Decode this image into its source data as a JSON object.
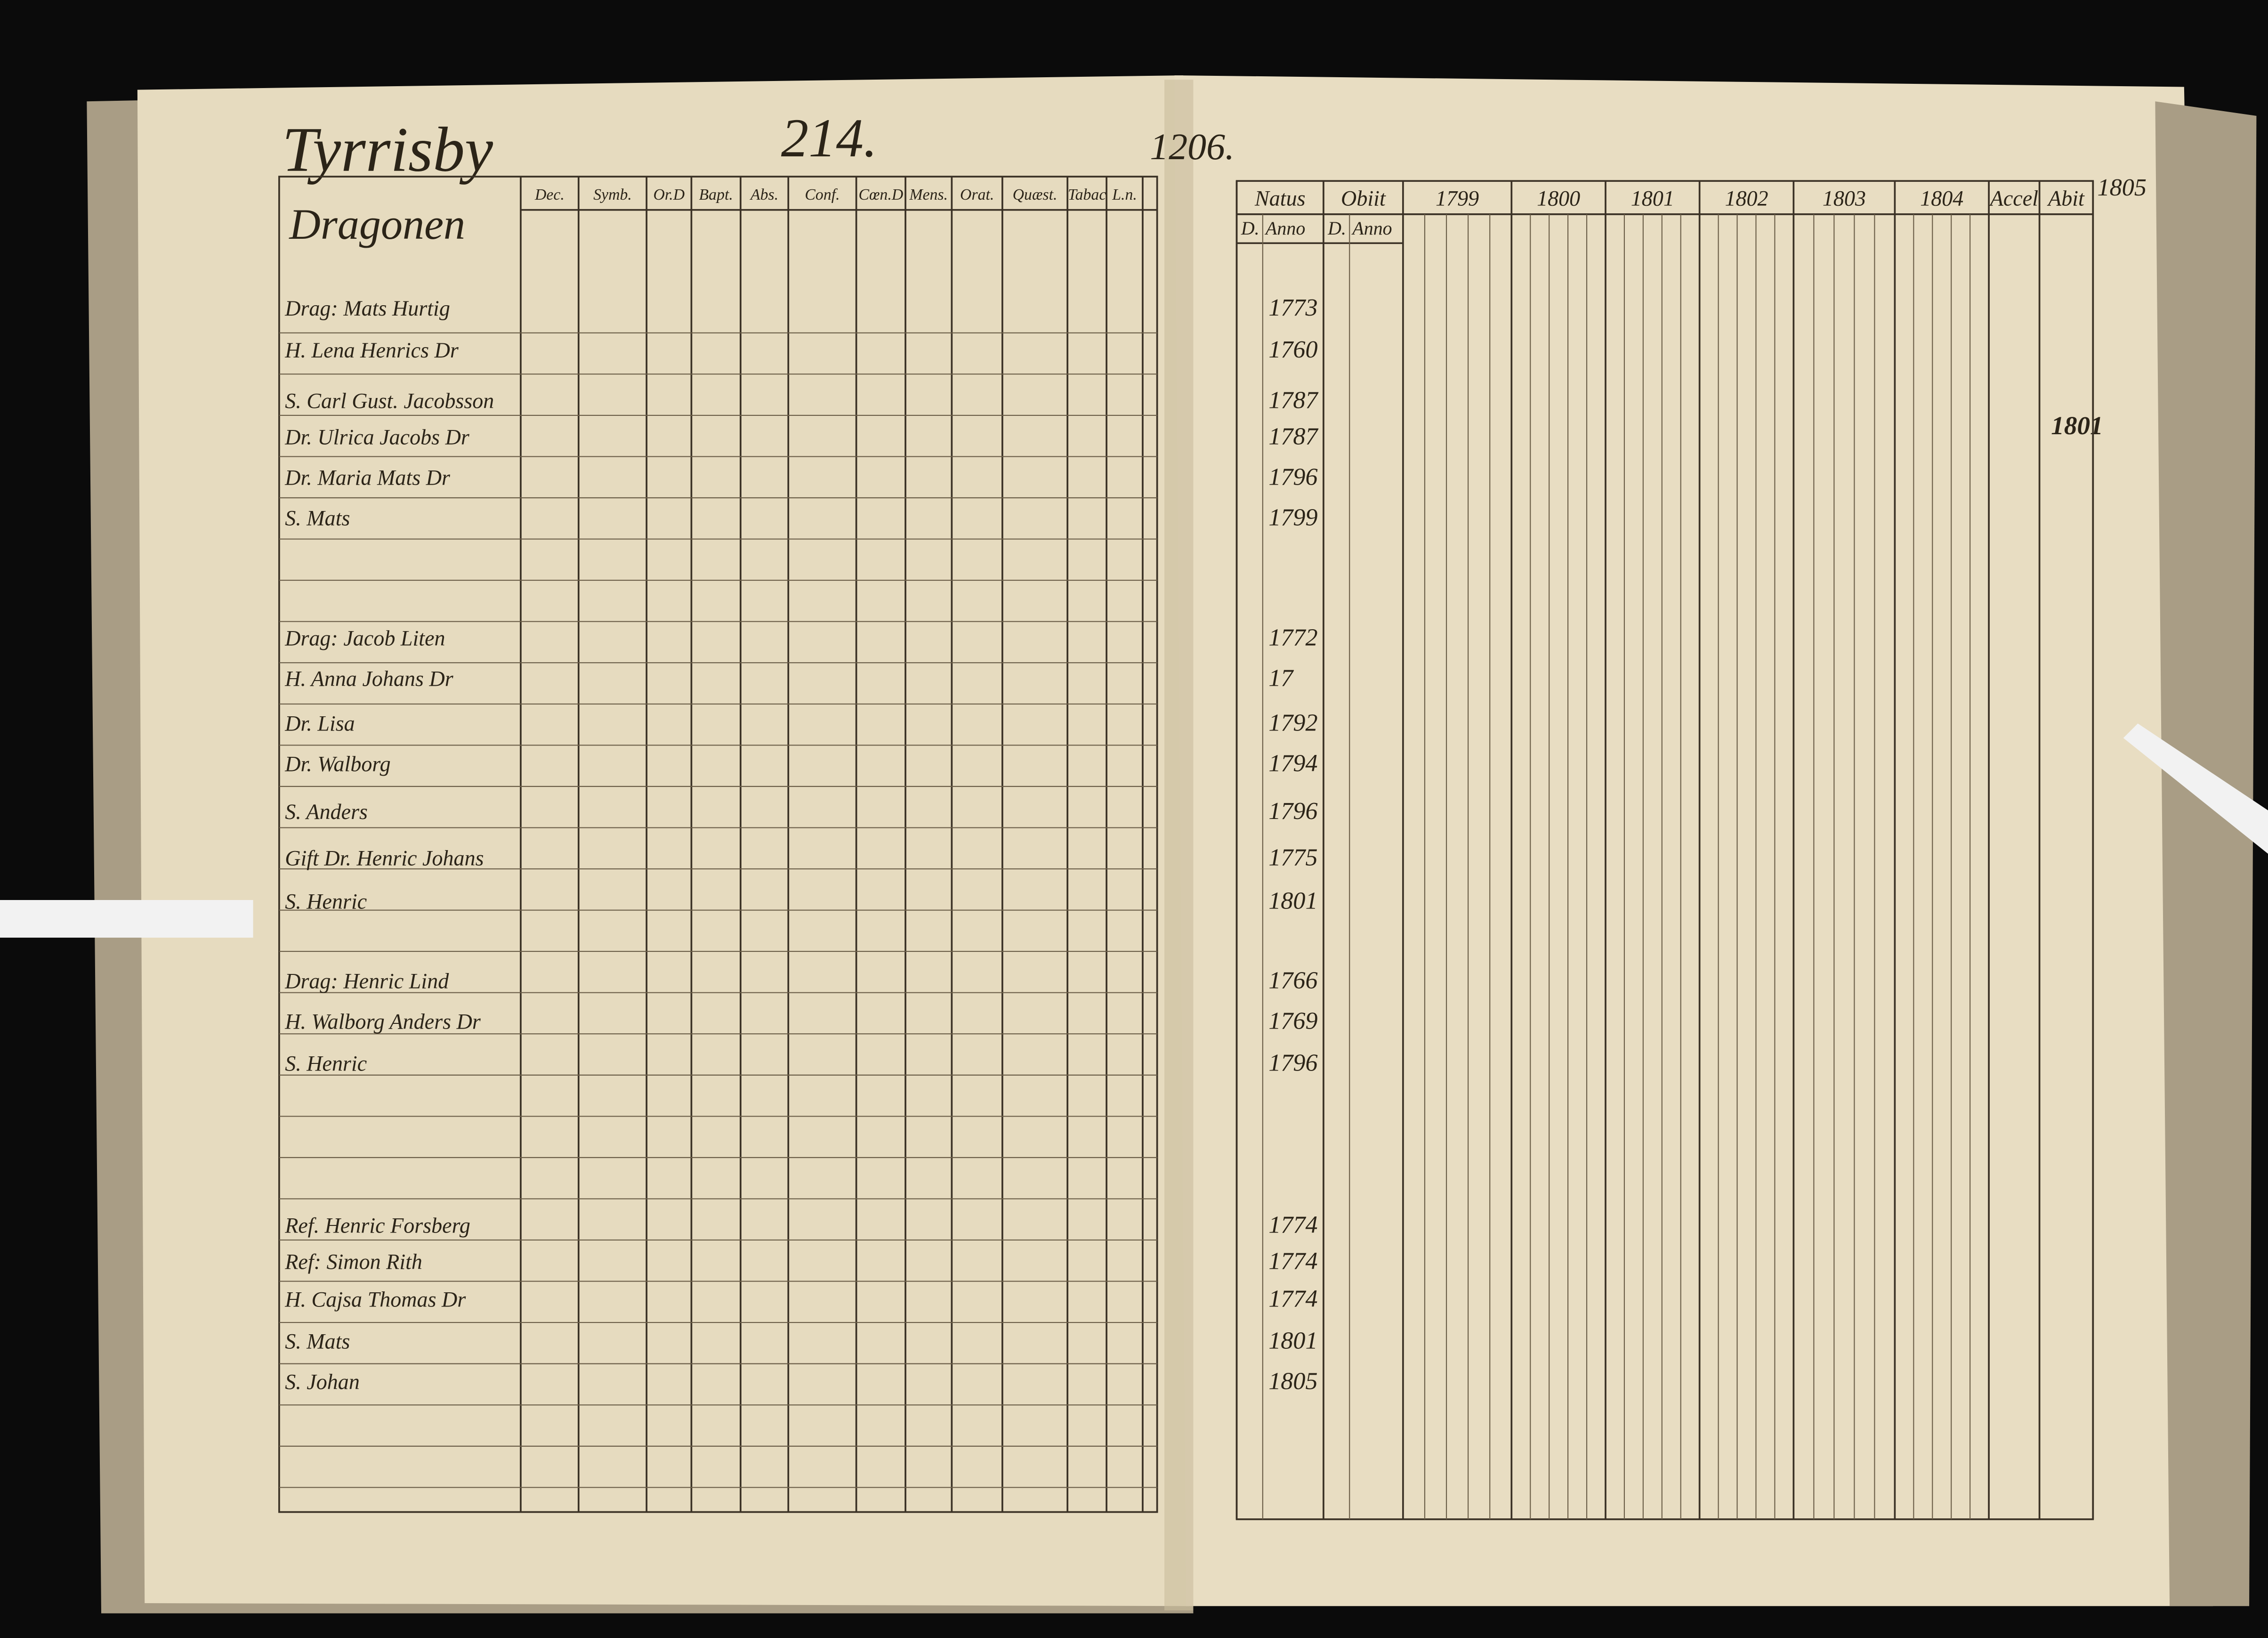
{
  "left_page": {
    "place": "Tyrrisby",
    "page_number": "214.",
    "heading": "Dragonen",
    "columns": [
      "Dec.",
      "Symb.",
      "Or.D",
      "Bapt.",
      "Abs.",
      "Conf.",
      "Cœn.D",
      "Mens.",
      "Orat.",
      "Quæst.",
      "Tabac",
      "L.n."
    ],
    "persons": [
      "Drag: Mats Hurtig",
      "H. Lena Henrics Dr",
      "S. Carl Gust. Jacobsson",
      "Dr. Ulrica Jacobs Dr",
      "Dr. Maria Mats Dr",
      "S. Mats",
      "Drag: Jacob Liten",
      "H. Anna Johans Dr",
      "Dr. Lisa",
      "Dr. Walborg",
      "S. Anders",
      "Gift Dr. Henric Johans",
      "S. Henric",
      "Drag: Henric Lind",
      "H. Walborg Anders Dr",
      "S. Henric",
      "Ref. Henric Forsberg",
      "Ref: Simon Rith",
      "H. Cajsa Thomas Dr",
      "S. Mats",
      "S. Johan"
    ]
  },
  "right_page": {
    "page_number": "1206.",
    "columns": [
      "Natus",
      "Obiit",
      "1799",
      "1800",
      "1801",
      "1802",
      "1803",
      "1804",
      "Accel",
      "Abit"
    ],
    "subcolumns": [
      "D.",
      "Anno",
      "D.",
      "Anno"
    ],
    "extra_year": "1805",
    "margin_note": "1801",
    "birth_years": [
      "1773",
      "1760",
      "1787",
      "1787",
      "1796",
      "1799",
      "1772",
      "17",
      "1792",
      "1794",
      "1796",
      "1775",
      "1801",
      "1766",
      "1769",
      "1796",
      "1774",
      "1774",
      "1774",
      "1801",
      "1805"
    ]
  }
}
